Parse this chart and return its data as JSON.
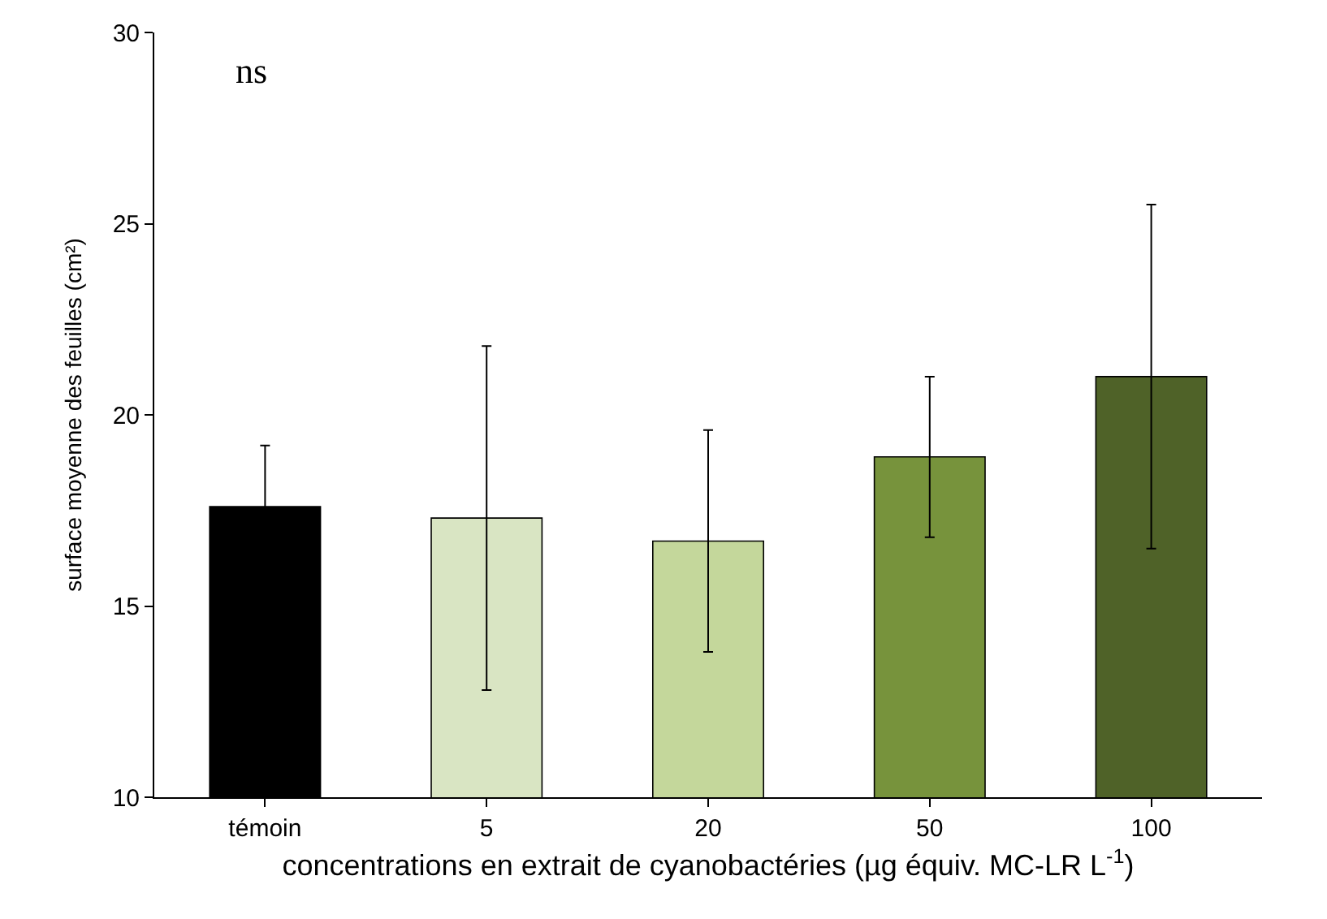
{
  "chart_data": {
    "type": "bar",
    "xlabel": "concentrations en extrait de cyanobactéries (µg équiv. MC-LR L$^{-1}$)",
    "ylabel": "surface moyenne des feuilles (cm²)",
    "categories": [
      "témoin",
      "5",
      "20",
      "50",
      "100"
    ],
    "values": [
      17.6,
      17.3,
      16.7,
      18.9,
      21.0
    ],
    "colors": [
      "#000000",
      "#d9e5c3",
      "#c4d79b",
      "#77933c",
      "#4f6228"
    ],
    "errors": [
      1.6,
      4.5,
      2.9,
      2.1,
      4.5
    ],
    "ylim": [
      10,
      30
    ],
    "yticks": [
      10,
      15,
      20,
      25,
      30
    ],
    "annotations": [
      "ns"
    ]
  }
}
